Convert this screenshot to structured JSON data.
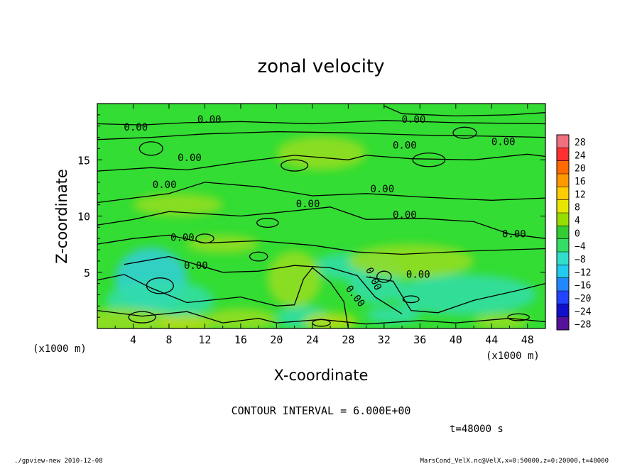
{
  "chart_data": {
    "type": "heatmap",
    "title": "zonal velocity",
    "xlabel": "X-coordinate",
    "ylabel": "Z-coordinate",
    "x_unit": "(x1000 m)",
    "y_unit": "(x1000 m)",
    "xlim": [
      0,
      50
    ],
    "ylim": [
      0,
      20
    ],
    "xticks": [
      4,
      8,
      12,
      16,
      20,
      24,
      28,
      32,
      36,
      40,
      44,
      48
    ],
    "yticks": [
      5,
      10,
      15
    ],
    "contour_label": "0.00",
    "contour_interval_text": "CONTOUR INTERVAL = 6.000E+00",
    "time_text": "t=48000 s",
    "colorbar": {
      "levels": [
        "28",
        "24",
        "20",
        "16",
        "12",
        "8",
        "4",
        "0",
        "-4",
        "-8",
        "-12",
        "-16",
        "-20",
        "-24",
        "-28"
      ],
      "colors": [
        "#f07080",
        "#ff3030",
        "#ff6a00",
        "#ff9900",
        "#ffcc00",
        "#e6e600",
        "#99dd00",
        "#33cc33",
        "#33dd66",
        "#33ddcc",
        "#22ccee",
        "#2288ff",
        "#2244ff",
        "#1111cc",
        "#551199"
      ]
    },
    "field_colors": {
      "background": "#33dd33",
      "positive_patch": "#99dd22",
      "strong_positive_patch": "#bbdd11",
      "negative_patch": "#33ddaa",
      "strong_negative_patch": "#33ccdd"
    },
    "contour_line_color": "#000000"
  },
  "footer": {
    "left": "./gpview-new   2010-12-08",
    "right": "MarsCond_VelX.nc@VelX,x=0:50000,z=0:20000,t=48000"
  }
}
